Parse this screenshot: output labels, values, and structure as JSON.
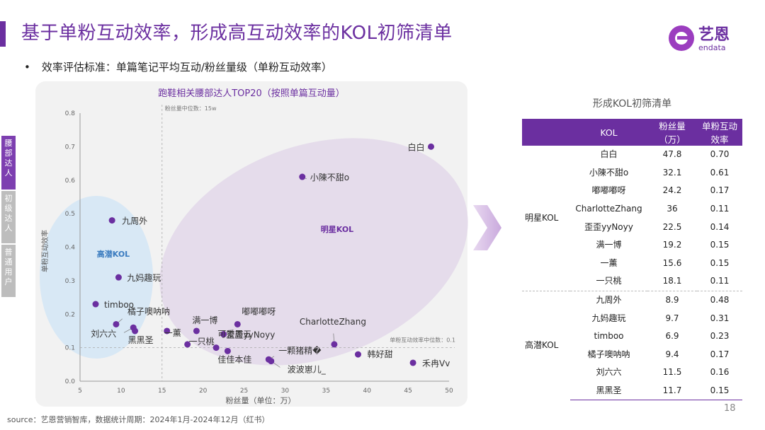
{
  "header": {
    "title": "基于单粉互动效率，形成高互动效率的KOL初筛清单",
    "bullet": "效率评估标准：单篇笔记平均互动/粉丝量级（单粉互动效率）",
    "logo_text": "艺恩",
    "logo_sub": "endata",
    "colors": {
      "accent": "#6b2fa0"
    }
  },
  "side_tabs": [
    {
      "chars": [
        "腰",
        "部",
        "达",
        "人"
      ],
      "active": true
    },
    {
      "chars": [
        "初",
        "级",
        "达",
        "人"
      ],
      "active": false
    },
    {
      "chars": [
        "普",
        "通",
        "用",
        "户"
      ],
      "active": false
    }
  ],
  "chart_data": {
    "type": "scatter",
    "title": "跑鞋相关腰部达人TOP20（按照单篇互动量）",
    "xlabel": "粉丝量（单位：万）",
    "ylabel": "单粉互动效率",
    "xlim": [
      5,
      50
    ],
    "ylim": [
      0,
      0.8
    ],
    "xticks": [
      5,
      10,
      15,
      20,
      25,
      30,
      35,
      40,
      45,
      50
    ],
    "yticks": [
      "0.0",
      "0.1",
      "0.2",
      "0.3",
      "0.4",
      "0.5",
      "0.6",
      "0.7",
      "0.8"
    ],
    "median_x": {
      "value": 15,
      "label": "粉丝量中位数：15w"
    },
    "median_y": {
      "value": 0.1,
      "label": "单粉互动效率中位数：0.1"
    },
    "clusters": [
      {
        "label": "高潜KOL",
        "color": "#3a7bbf"
      },
      {
        "label": "明星KOL",
        "color": "#6b2fa0"
      }
    ],
    "points": [
      {
        "name": "白白",
        "x": 47.8,
        "y": 0.7
      },
      {
        "name": "小陳不甜o",
        "x": 32.1,
        "y": 0.61
      },
      {
        "name": "嘟嘟嘟呀",
        "x": 24.2,
        "y": 0.17
      },
      {
        "name": "CharlotteZhang",
        "x": 36.0,
        "y": 0.11
      },
      {
        "name": "歪歪yyNoyy",
        "x": 22.5,
        "y": 0.14
      },
      {
        "name": "满一博",
        "x": 19.2,
        "y": 0.15
      },
      {
        "name": "一薰",
        "x": 15.6,
        "y": 0.15
      },
      {
        "name": "一只桃",
        "x": 18.1,
        "y": 0.11
      },
      {
        "name": "九周外",
        "x": 8.9,
        "y": 0.48
      },
      {
        "name": "九妈趣玩",
        "x": 9.7,
        "y": 0.31
      },
      {
        "name": "timboo",
        "x": 6.9,
        "y": 0.23
      },
      {
        "name": "橘子噢呐呐",
        "x": 9.4,
        "y": 0.17
      },
      {
        "name": "刘六六",
        "x": 11.5,
        "y": 0.16
      },
      {
        "name": "黑黑圣",
        "x": 11.7,
        "y": 0.15
      },
      {
        "name": "可爱周五",
        "x": 21.6,
        "y": 0.1
      },
      {
        "name": "佳佳本佳",
        "x": 23.0,
        "y": 0.09
      },
      {
        "name": "一颗猪精�",
        "x": 28.0,
        "y": 0.065
      },
      {
        "name": "波波崽儿_",
        "x": 28.3,
        "y": 0.06
      },
      {
        "name": "韩好甜",
        "x": 38.9,
        "y": 0.08
      },
      {
        "name": "禾冉Vv",
        "x": 45.6,
        "y": 0.055
      }
    ]
  },
  "table": {
    "title": "形成KOL初筛清单",
    "headers": [
      "KOL",
      "粉丝量（万）",
      "单粉互动效率"
    ],
    "groups": [
      {
        "name": "明星KOL",
        "rows": [
          [
            "白白",
            "47.8",
            "0.70"
          ],
          [
            "小陳不甜o",
            "32.1",
            "0.61"
          ],
          [
            "嘟嘟嘟呀",
            "24.2",
            "0.17"
          ],
          [
            "CharlotteZhang",
            "36",
            "0.11"
          ],
          [
            "歪歪yyNoyy",
            "22.5",
            "0.14"
          ],
          [
            "满一博",
            "19.2",
            "0.15"
          ],
          [
            "一薰",
            "15.6",
            "0.15"
          ],
          [
            "一只桃",
            "18.1",
            "0.11"
          ]
        ]
      },
      {
        "name": "高潜KOL",
        "rows": [
          [
            "九周外",
            "8.9",
            "0.48"
          ],
          [
            "九妈趣玩",
            "9.7",
            "0.31"
          ],
          [
            "timboo",
            "6.9",
            "0.23"
          ],
          [
            "橘子噢呐呐",
            "9.4",
            "0.17"
          ],
          [
            "刘六六",
            "11.5",
            "0.16"
          ],
          [
            "黑黑圣",
            "11.7",
            "0.15"
          ]
        ]
      }
    ]
  },
  "footer": {
    "source": "source：艺恩营销智库，数据统计周期：2024年1月-2024年12月（红书）",
    "page": "18"
  }
}
